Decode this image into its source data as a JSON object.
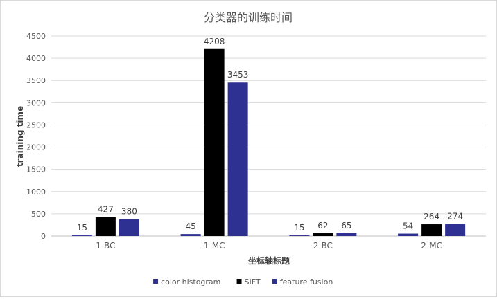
{
  "chart_data": {
    "type": "bar",
    "title": "分类器的训练时间",
    "xlabel": "坐标轴标题",
    "ylabel": "training time",
    "ylim": [
      0,
      4500
    ],
    "yticks": [
      0,
      500,
      1000,
      1500,
      2000,
      2500,
      3000,
      3500,
      4000,
      4500
    ],
    "grid": true,
    "legend_position": "bottom",
    "categories": [
      "1-BC",
      "1-MC",
      "2-BC",
      "2-MC"
    ],
    "series": [
      {
        "name": "color histogram",
        "color": "#2e3192",
        "values": [
          15,
          45,
          15,
          54
        ]
      },
      {
        "name": "SIFT",
        "color": "#000000",
        "values": [
          427,
          4208,
          62,
          264
        ]
      },
      {
        "name": "feature fusion",
        "color": "#2e3192",
        "values": [
          380,
          3453,
          65,
          274
        ]
      }
    ]
  }
}
